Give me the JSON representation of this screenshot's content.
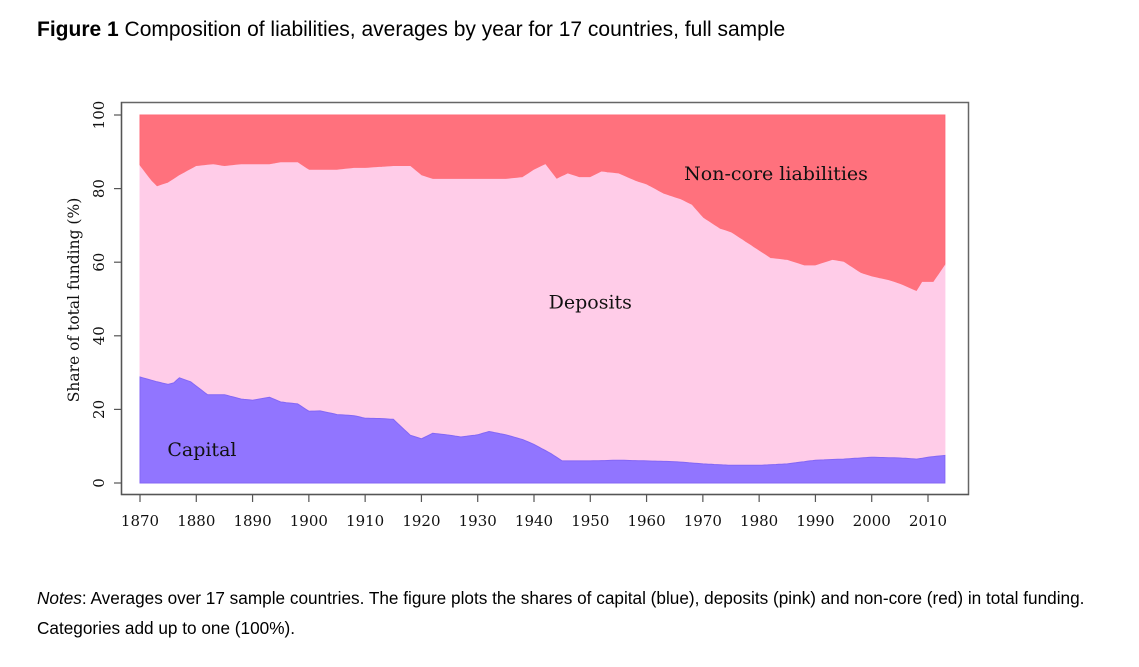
{
  "figure": {
    "number_label": "Figure 1",
    "title": "Composition of liabilities, averages by year for 17 countries, full sample",
    "notes_label": "Notes",
    "notes_text": ": Averages over 17 sample countries. The figure plots the shares of capital (blue), deposits (pink) and non-core (red) in total funding. Categories add up to one (100%)."
  },
  "chart_data": {
    "type": "area",
    "stacked": true,
    "title": "Composition of liabilities, averages by year for 17 countries, full sample",
    "xlabel": "",
    "ylabel": "Share of total funding (%)",
    "xlim": [
      1870,
      2013
    ],
    "ylim": [
      0,
      100
    ],
    "x_ticks": [
      1870,
      1880,
      1890,
      1900,
      1910,
      1920,
      1930,
      1940,
      1950,
      1960,
      1970,
      1980,
      1990,
      2000,
      2010
    ],
    "y_ticks": [
      0,
      20,
      40,
      60,
      80,
      100
    ],
    "grid": false,
    "legend": "none (in-area labels)",
    "colors": {
      "capital": "#9175ff",
      "deposits": "#ffcce8",
      "noncore": "#ff717d"
    },
    "series": [
      {
        "name": "Capital",
        "key": "capital",
        "label_year": 1881,
        "label_value": 9,
        "x": [
          1870,
          1873,
          1875,
          1876,
          1877,
          1879,
          1880,
          1882,
          1885,
          1888,
          1890,
          1893,
          1895,
          1898,
          1900,
          1902,
          1905,
          1908,
          1910,
          1913,
          1915,
          1918,
          1920,
          1922,
          1925,
          1927,
          1930,
          1932,
          1935,
          1938,
          1940,
          1943,
          1945,
          1950,
          1955,
          1960,
          1965,
          1970,
          1975,
          1980,
          1985,
          1990,
          1995,
          2000,
          2005,
          2008,
          2010,
          2013
        ],
        "values": [
          28.8,
          27.5,
          26.8,
          27.2,
          28.6,
          27.5,
          26.3,
          24.0,
          24.0,
          22.8,
          22.5,
          23.3,
          22.0,
          21.5,
          19.5,
          19.6,
          18.6,
          18.3,
          17.6,
          17.5,
          17.3,
          13.0,
          12.0,
          13.5,
          13.0,
          12.5,
          13.1,
          14.0,
          13.1,
          11.8,
          10.5,
          8.0,
          6.0,
          6.0,
          6.2,
          6.0,
          5.8,
          5.2,
          4.8,
          4.8,
          5.2,
          6.2,
          6.5,
          7.0,
          6.8,
          6.5,
          7.0,
          7.5
        ]
      },
      {
        "name": "Deposits",
        "key": "deposits",
        "label_year": 1950,
        "label_value": 49,
        "cumulative_top_x": [
          1870,
          1872,
          1873,
          1875,
          1877,
          1880,
          1883,
          1885,
          1888,
          1890,
          1893,
          1895,
          1898,
          1900,
          1905,
          1908,
          1910,
          1915,
          1918,
          1920,
          1922,
          1925,
          1930,
          1935,
          1938,
          1940,
          1942,
          1944,
          1946,
          1948,
          1950,
          1952,
          1955,
          1958,
          1960,
          1963,
          1966,
          1968,
          1970,
          1973,
          1975,
          1978,
          1980,
          1982,
          1985,
          1988,
          1990,
          1993,
          1995,
          1998,
          2000,
          2003,
          2005,
          2008,
          2009,
          2011,
          2013
        ],
        "cumulative_top_values": [
          86.0,
          82.0,
          80.5,
          81.5,
          83.5,
          86.0,
          86.5,
          86.0,
          86.5,
          86.5,
          86.5,
          87.0,
          87.0,
          85.0,
          85.0,
          85.5,
          85.5,
          86.0,
          86.0,
          83.5,
          82.5,
          82.5,
          82.5,
          82.5,
          83.0,
          85.0,
          86.5,
          82.5,
          84.0,
          83.0,
          83.0,
          84.5,
          84.0,
          82.0,
          81.0,
          78.5,
          77.0,
          75.5,
          72.0,
          69.0,
          68.0,
          65.0,
          63.0,
          61.0,
          60.5,
          59.0,
          59.0,
          60.5,
          60.0,
          57.0,
          56.0,
          55.0,
          54.0,
          52.0,
          54.5,
          54.5,
          59.0
        ]
      },
      {
        "name": "Non-core liabilities",
        "key": "noncore",
        "label_year": 1983,
        "label_value": 84,
        "note": "Fills from the deposits cumulative top up to 100%"
      }
    ]
  }
}
